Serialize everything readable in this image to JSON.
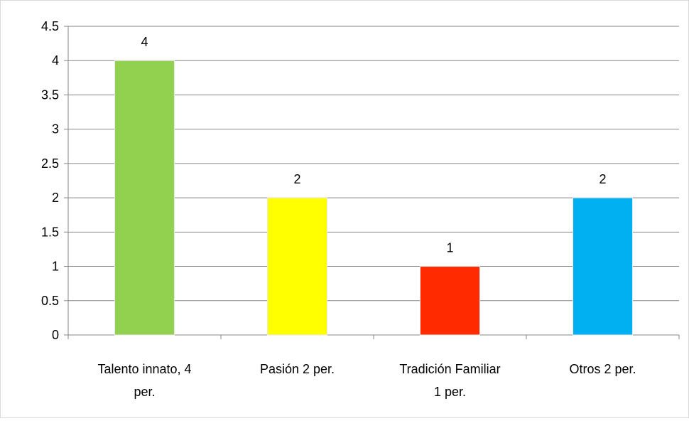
{
  "chart_data": {
    "type": "bar",
    "categories": [
      [
        "Talento innato, 4",
        "per."
      ],
      [
        "Pasión 2 per."
      ],
      [
        "Tradición Familiar",
        "1 per."
      ],
      [
        "Otros 2 per."
      ]
    ],
    "values": [
      4,
      2,
      1,
      2
    ],
    "data_labels": [
      "4",
      "2",
      "1",
      "2"
    ],
    "bar_colors": [
      "#92D050",
      "#FFFF00",
      "#FF2A00",
      "#00B0F0"
    ],
    "ylim": [
      0,
      4.5
    ],
    "yticks": [
      "0",
      "0.5",
      "1",
      "1.5",
      "2",
      "2.5",
      "3",
      "3.5",
      "4",
      "4.5"
    ],
    "grid": true,
    "legend": "none"
  }
}
